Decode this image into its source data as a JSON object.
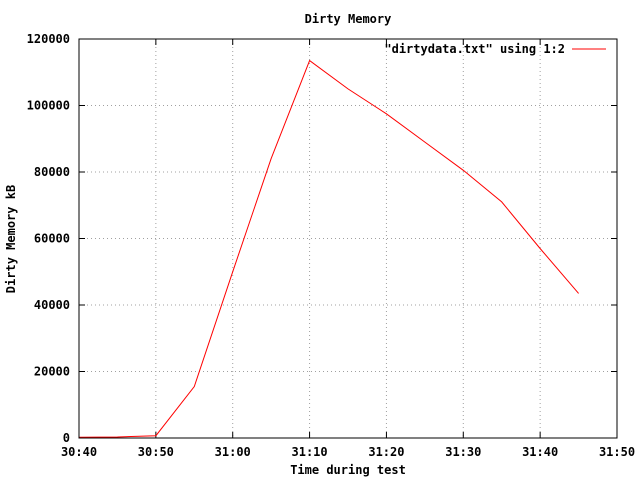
{
  "chart_data": {
    "type": "line",
    "title": "Dirty Memory",
    "xlabel": "Time during test",
    "ylabel": "Dirty Memory kB",
    "x_ticks": [
      "30:40",
      "30:50",
      "31:00",
      "31:10",
      "31:20",
      "31:30",
      "31:40",
      "31:50"
    ],
    "y_ticks": [
      0,
      20000,
      40000,
      60000,
      80000,
      100000,
      120000
    ],
    "xlim": [
      "30:40",
      "31:50"
    ],
    "ylim": [
      0,
      120000
    ],
    "grid": true,
    "legend_position": "top-right",
    "series": [
      {
        "name": "\"dirtydata.txt\" using 1:2",
        "color": "#ff0000",
        "x": [
          "30:40",
          "30:45",
          "30:50",
          "30:55",
          "31:00",
          "31:05",
          "31:10",
          "31:15",
          "31:20",
          "31:25",
          "31:30",
          "31:35",
          "31:40",
          "31:45"
        ],
        "y": [
          200,
          300,
          700,
          15500,
          50000,
          84000,
          113500,
          105000,
          97500,
          89000,
          80500,
          71000,
          57000,
          43500
        ]
      }
    ]
  }
}
